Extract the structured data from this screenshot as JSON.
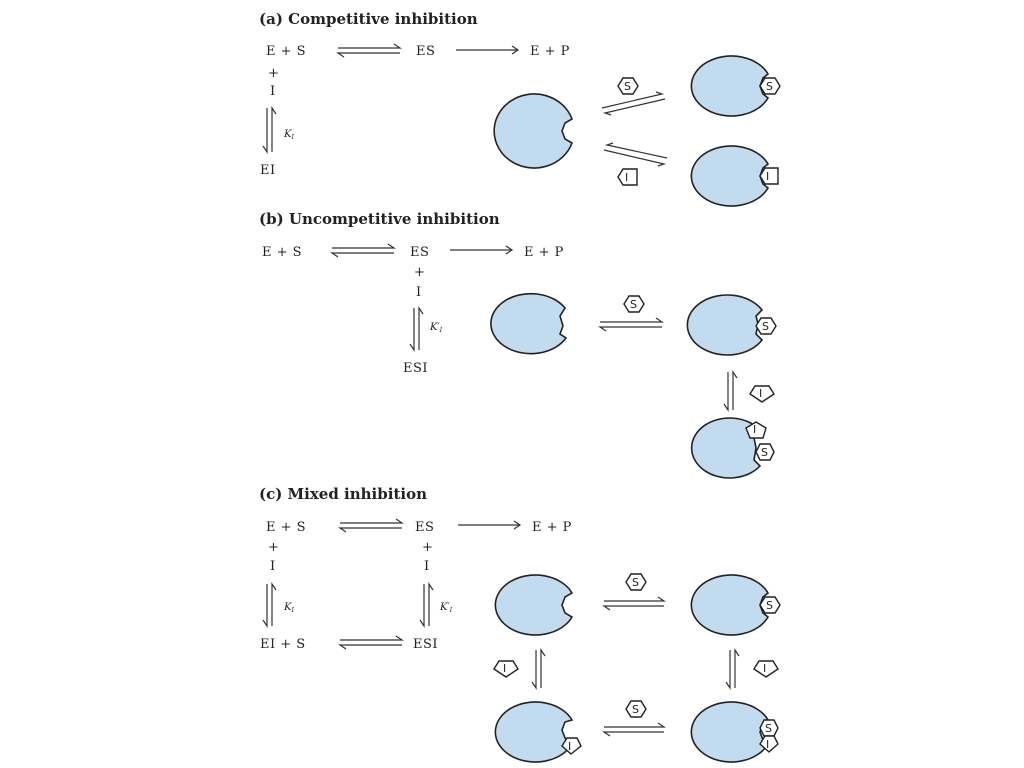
{
  "panels": {
    "competitive": {
      "heading": "(a) Competitive inhibition",
      "eq_E_plus_S": "E + S",
      "eq_ES": "ES",
      "eq_E_plus_P": "E + P",
      "plus": "+",
      "I": "I",
      "Ki": "K",
      "Ki_sub": "I",
      "EI": "EI",
      "substrate": "S",
      "inhibitor": "I"
    },
    "uncompetitive": {
      "heading": "(b) Uncompetitive inhibition",
      "eq_E_plus_S": "E + S",
      "eq_ES": "ES",
      "eq_E_plus_P": "E + P",
      "plus": "+",
      "I": "I",
      "Ki": "K′",
      "Ki_sub": "I",
      "ESI": "ESI",
      "substrate": "S",
      "inhibitor": "I"
    },
    "mixed": {
      "heading": "(c) Mixed inhibition",
      "eq_E_plus_S": "E + S",
      "eq_ES": "ES",
      "eq_E_plus_P": "E + P",
      "plus": "+",
      "I": "I",
      "Ki": "K",
      "Ki_sub": "I",
      "Ki_prime": "K′",
      "Ki_prime_sub": "I",
      "EI_plus_S": "EI + S",
      "ESI": "ESI",
      "substrate": "S",
      "inhibitor": "I"
    }
  },
  "colors": {
    "enzyme_fill": "#c3dbef",
    "outline": "#222222"
  }
}
